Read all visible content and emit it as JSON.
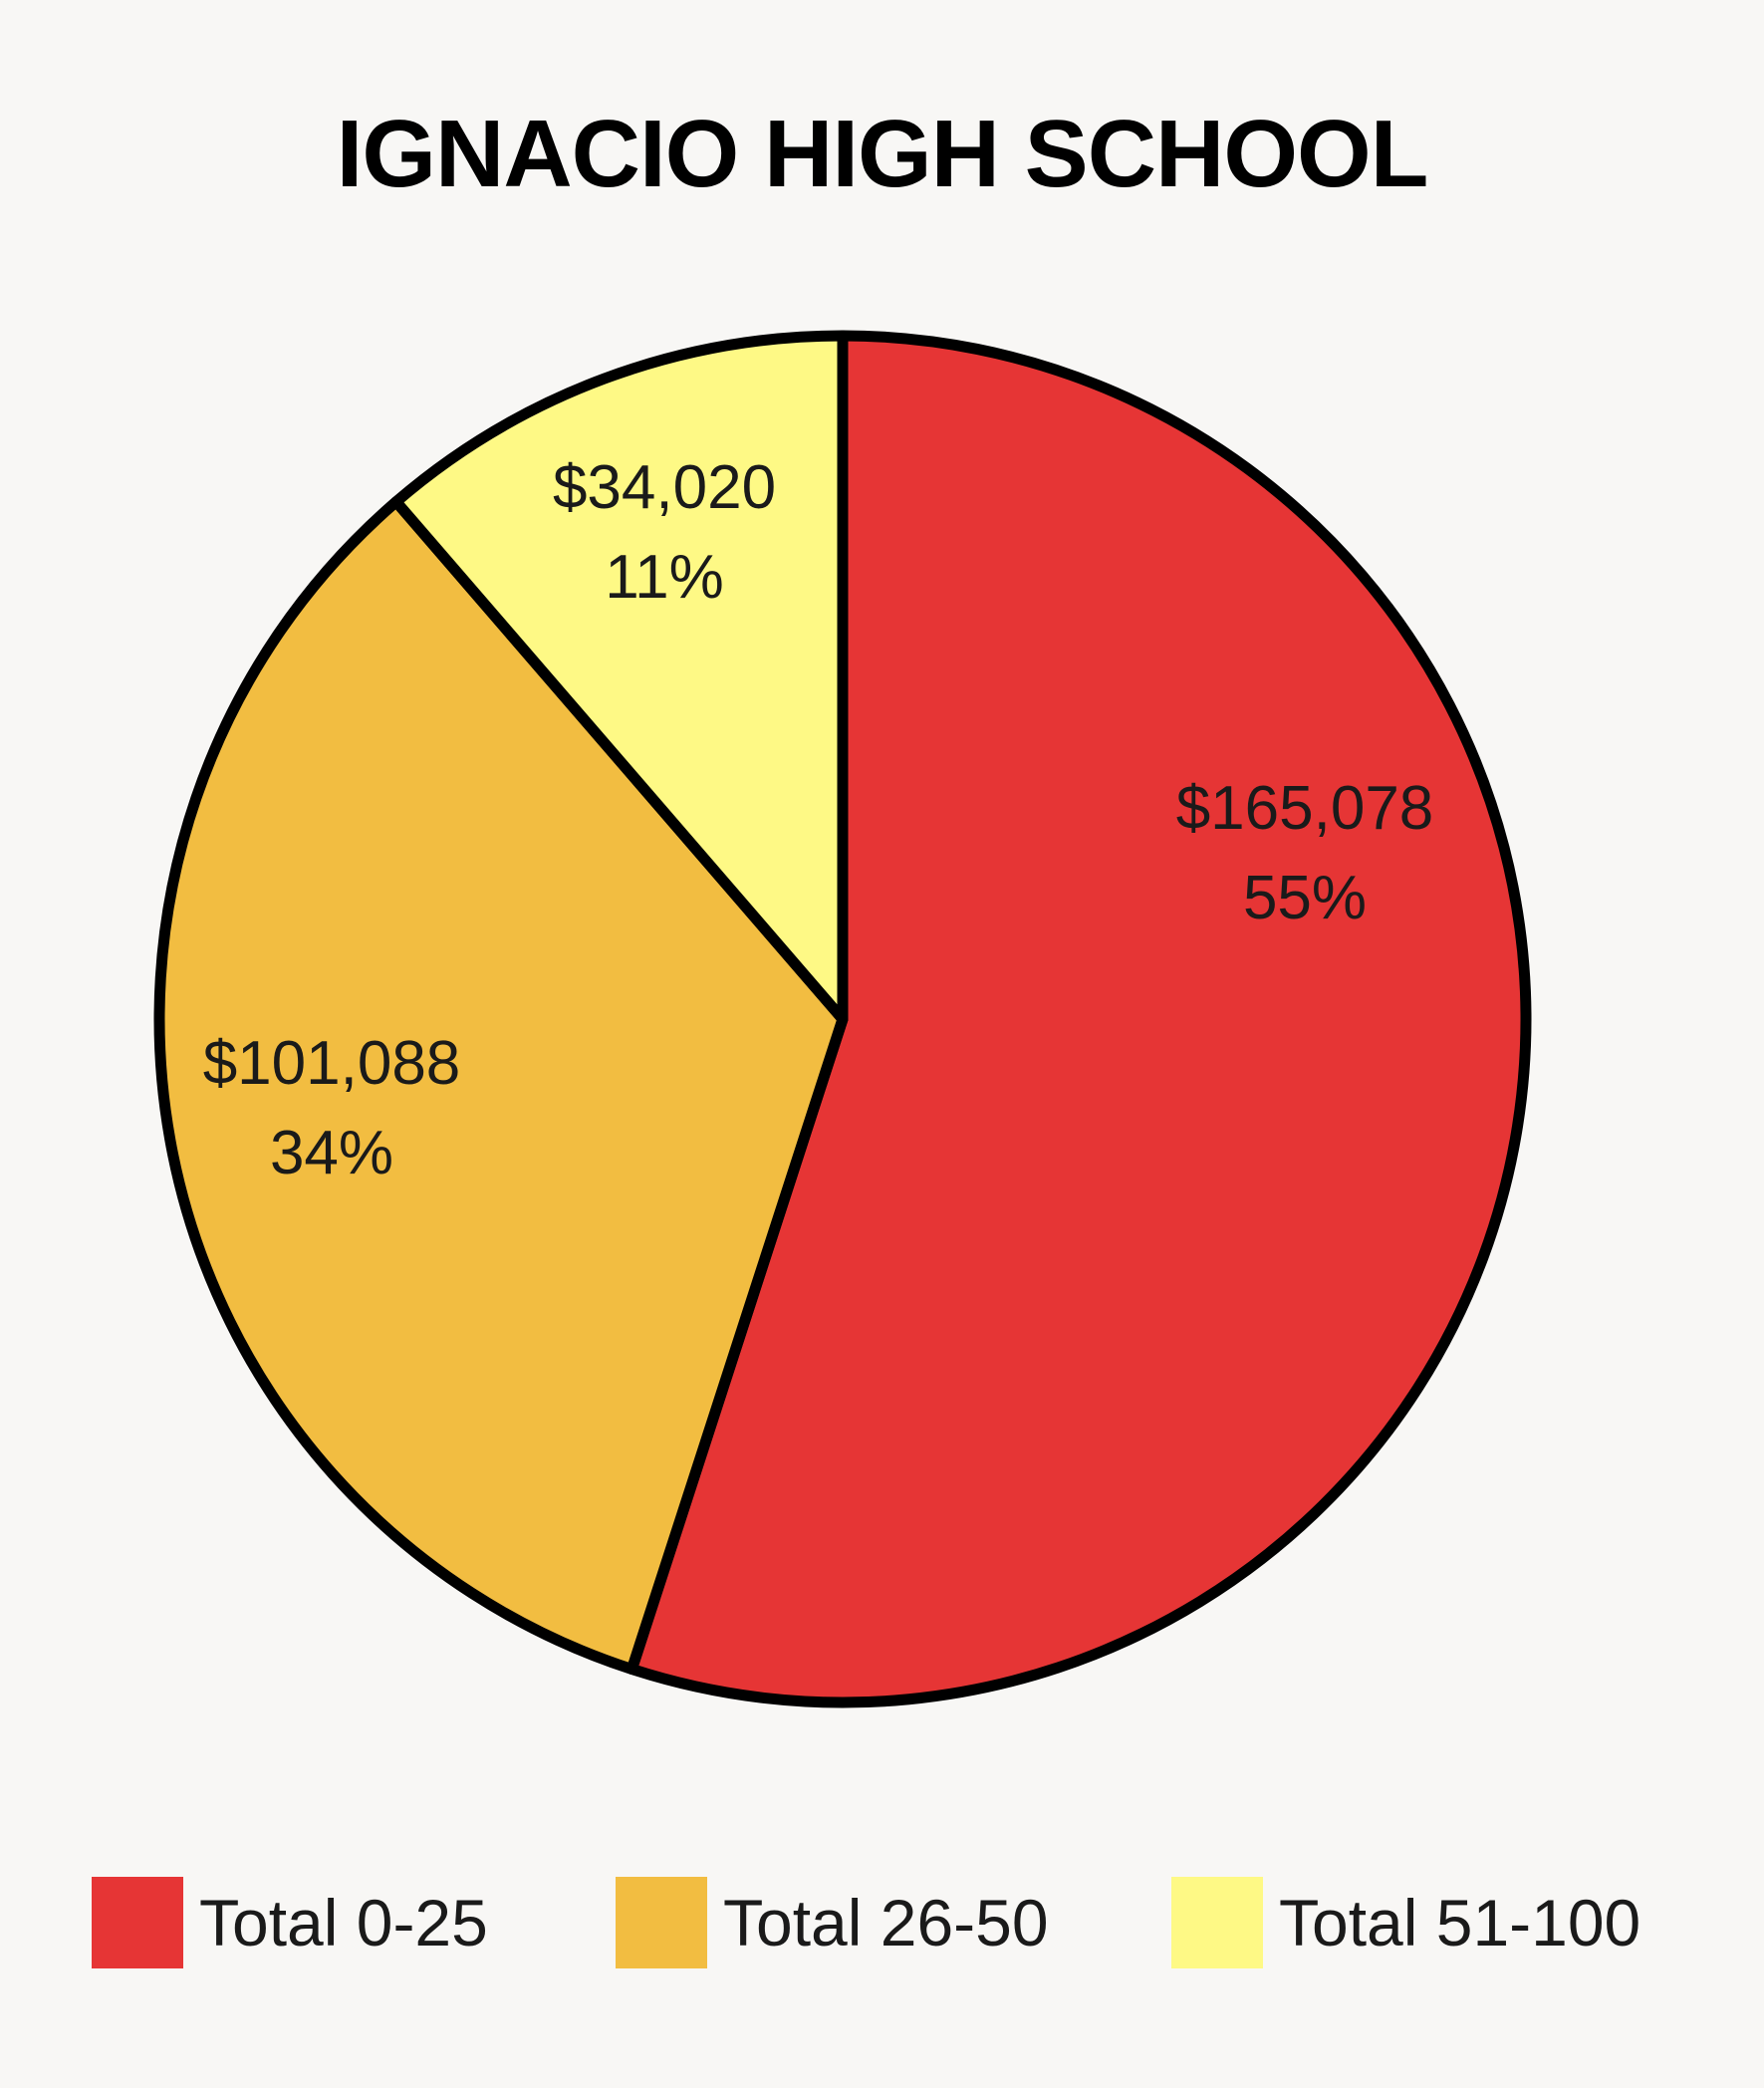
{
  "chart_data": {
    "type": "pie",
    "title": "IGNACIO HIGH SCHOOL",
    "slices": [
      {
        "name": "Total 0-25",
        "value": 165078,
        "value_label": "$165,078",
        "percent_label": "55%",
        "color": "#e63535"
      },
      {
        "name": "Total 26-50",
        "value": 101088,
        "value_label": "$101,088",
        "percent_label": "34%",
        "color": "#f2bd41"
      },
      {
        "name": "Total 51-100",
        "value": 34020,
        "value_label": "$34,020",
        "percent_label": "11%",
        "color": "#fef985"
      }
    ],
    "legend_position": "bottom",
    "start_angle": "12 o'clock",
    "direction": "clockwise"
  }
}
